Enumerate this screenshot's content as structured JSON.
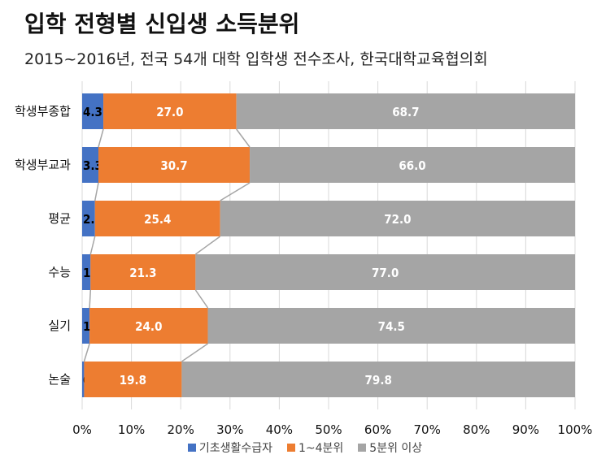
{
  "chart_data": {
    "type": "bar",
    "orientation": "horizontal",
    "stacked": "percent",
    "title": "입학 전형별 신입생 소득분위",
    "subtitle": "2015~2016년, 전국 54개 대학 입학생 전수조사, 한국대학교육협의회",
    "categories": [
      "학생부종합",
      "학생부교과",
      "평균",
      "수능",
      "실기",
      "논술"
    ],
    "series": [
      {
        "name": "기초생활수급자",
        "color": "#4472c4",
        "values": [
          4.3,
          3.3,
          2.6,
          1.7,
          1.5,
          0.4
        ]
      },
      {
        "name": "1~4분위",
        "color": "#ed7d31",
        "values": [
          27.0,
          30.7,
          25.4,
          21.3,
          24.0,
          19.8
        ]
      },
      {
        "name": "5분위 이상",
        "color": "#a5a5a5",
        "values": [
          68.7,
          66.0,
          72.0,
          77.0,
          74.5,
          79.8
        ]
      }
    ],
    "xlim": [
      0,
      100
    ],
    "x_ticks": [
      "0%",
      "10%",
      "20%",
      "30%",
      "40%",
      "50%",
      "60%",
      "70%",
      "80%",
      "90%",
      "100%"
    ],
    "grid": "vertical",
    "series_lines": true,
    "legend_position": "bottom"
  }
}
